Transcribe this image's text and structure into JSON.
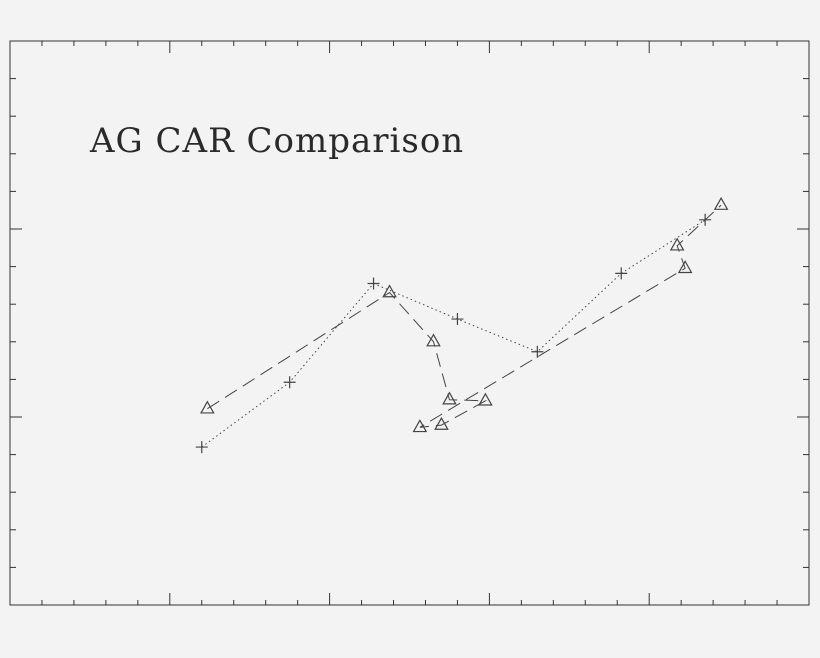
{
  "chart_data": {
    "type": "line",
    "title": "AG CAR Comparison",
    "xlabel": "",
    "ylabel": "",
    "xlim": [
      0,
      100
    ],
    "ylim": [
      0,
      100
    ],
    "grid": false,
    "colors": {
      "axis": "#333333",
      "series": "#444444",
      "background": "#f3f3f3"
    },
    "series": [
      {
        "marker": "plus",
        "line_style": "dotted",
        "points": [
          [
            24,
            28
          ],
          [
            35,
            39.5
          ],
          [
            45.5,
            57
          ],
          [
            56,
            50.7
          ],
          [
            66,
            44.9
          ],
          [
            76.5,
            58.8
          ],
          [
            87,
            68.3
          ]
        ]
      },
      {
        "marker": "triangle",
        "line_style": "dashed",
        "points": [
          [
            24.7,
            34.8
          ],
          [
            47.5,
            55.4
          ],
          [
            53,
            46.7
          ],
          [
            55,
            36.4
          ],
          [
            59.5,
            36.2
          ],
          [
            54,
            31.9
          ],
          [
            51.3,
            31.5
          ],
          [
            84.5,
            59.7
          ],
          [
            83.5,
            63.7
          ],
          [
            89,
            70.9
          ]
        ]
      }
    ]
  }
}
